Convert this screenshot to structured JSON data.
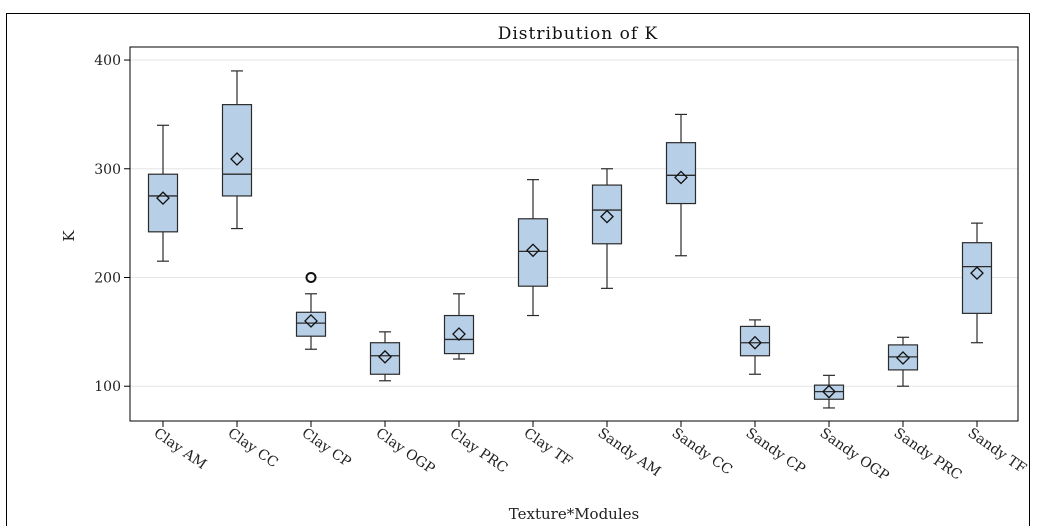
{
  "chart_data": {
    "type": "box",
    "title": "Distribution of K",
    "xlabel": "Texture*Modules",
    "ylabel": "K",
    "ylim": [
      68,
      412
    ],
    "yticks": [
      100,
      200,
      300,
      400
    ],
    "grid": true,
    "box_fill": "#b8cfe8",
    "box_stroke": "#2b2b2b",
    "categories": [
      "Clay AM",
      "Clay CC",
      "Clay CP",
      "Clay OGP",
      "Clay PRC",
      "Clay TF",
      "Sandy AM",
      "Sandy CC",
      "Sandy CP",
      "Sandy OGP",
      "Sandy PRC",
      "Sandy TF"
    ],
    "boxes": [
      {
        "min": 215,
        "q1": 242,
        "median": 275,
        "q3": 295,
        "max": 340,
        "mean": 273,
        "outliers": []
      },
      {
        "min": 245,
        "q1": 275,
        "median": 295,
        "q3": 359,
        "max": 390,
        "mean": 309,
        "outliers": []
      },
      {
        "min": 134,
        "q1": 146,
        "median": 158,
        "q3": 168,
        "max": 185,
        "mean": 160,
        "outliers": [
          200
        ]
      },
      {
        "min": 105,
        "q1": 111,
        "median": 128,
        "q3": 140,
        "max": 150,
        "mean": 127,
        "outliers": []
      },
      {
        "min": 125,
        "q1": 130,
        "median": 143,
        "q3": 165,
        "max": 185,
        "mean": 148,
        "outliers": []
      },
      {
        "min": 165,
        "q1": 192,
        "median": 224,
        "q3": 254,
        "max": 290,
        "mean": 225,
        "outliers": []
      },
      {
        "min": 190,
        "q1": 231,
        "median": 262,
        "q3": 285,
        "max": 300,
        "mean": 256,
        "outliers": []
      },
      {
        "min": 220,
        "q1": 268,
        "median": 294,
        "q3": 324,
        "max": 350,
        "mean": 292,
        "outliers": []
      },
      {
        "min": 111,
        "q1": 128,
        "median": 140,
        "q3": 155,
        "max": 161,
        "mean": 140,
        "outliers": []
      },
      {
        "min": 80,
        "q1": 88,
        "median": 95,
        "q3": 101,
        "max": 110,
        "mean": 95,
        "outliers": []
      },
      {
        "min": 100,
        "q1": 115,
        "median": 127,
        "q3": 138,
        "max": 145,
        "mean": 126,
        "outliers": []
      },
      {
        "min": 140,
        "q1": 167,
        "median": 210,
        "q3": 232,
        "max": 250,
        "mean": 204,
        "outliers": []
      }
    ]
  }
}
